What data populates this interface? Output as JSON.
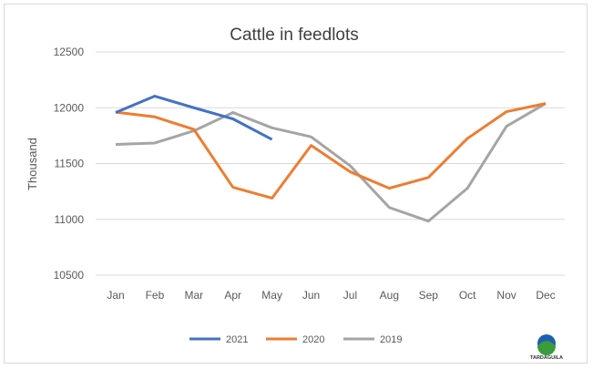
{
  "chart_data": {
    "type": "line",
    "title": "Cattle in feedlots",
    "xlabel": "",
    "ylabel": "Thousand",
    "categories": [
      "Jan",
      "Feb",
      "Mar",
      "Apr",
      "May",
      "Jun",
      "Jul",
      "Aug",
      "Sep",
      "Oct",
      "Nov",
      "Dec"
    ],
    "ylim": [
      10500,
      12500
    ],
    "yticks": [
      10500,
      11000,
      11500,
      12000,
      12500
    ],
    "grid": true,
    "legend": "bottom",
    "series": [
      {
        "name": "2021",
        "color": "#4472c4",
        "values": [
          11957,
          12104,
          12000,
          11900,
          11716,
          null,
          null,
          null,
          null,
          null,
          null,
          null
        ]
      },
      {
        "name": "2020",
        "color": "#ed7d31",
        "values": [
          11960,
          11918,
          11806,
          11287,
          11190,
          11662,
          11426,
          11279,
          11375,
          11725,
          11965,
          12038
        ]
      },
      {
        "name": "2019",
        "color": "#a5a5a5",
        "values": [
          11671,
          11684,
          11793,
          11957,
          11820,
          11739,
          11480,
          11106,
          10984,
          11279,
          11834,
          12038
        ]
      }
    ]
  },
  "logo": {
    "text": "TARDÁGUILA"
  }
}
